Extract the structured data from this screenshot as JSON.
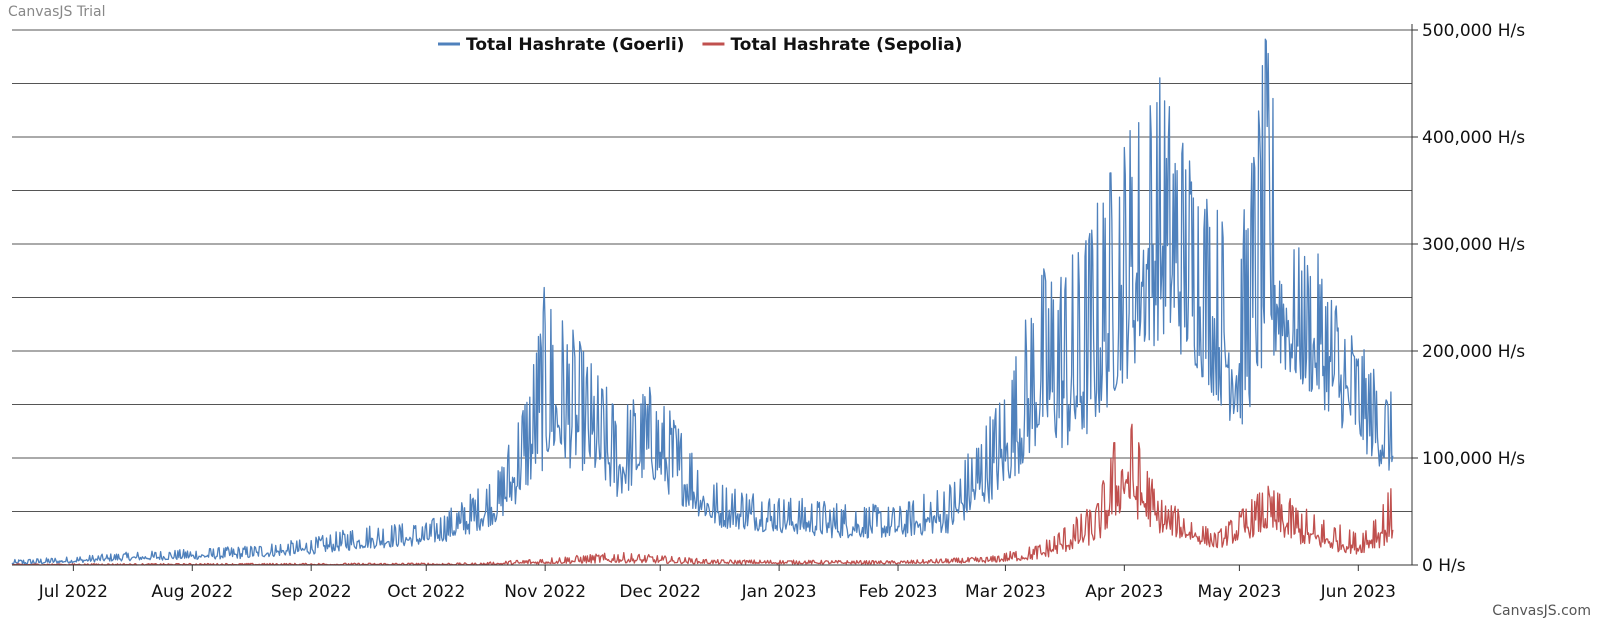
{
  "watermark": "CanvasJS Trial",
  "credit": "CanvasJS.com",
  "chart_data": {
    "type": "line",
    "title": "",
    "xlabel": "",
    "ylabel": "",
    "x_range": [
      "2022-06-15",
      "2023-06-15"
    ],
    "ylim": [
      0,
      500000
    ],
    "y_ticks": [
      {
        "value": 0,
        "label": "0 H/s"
      },
      {
        "value": 100000,
        "label": "100,000 H/s"
      },
      {
        "value": 200000,
        "label": "200,000 H/s"
      },
      {
        "value": 300000,
        "label": "300,000 H/s"
      },
      {
        "value": 400000,
        "label": "400,000 H/s"
      },
      {
        "value": 500000,
        "label": "500,000 H/s"
      }
    ],
    "x_ticks": [
      {
        "date": "2022-07-01",
        "label": "Jul 2022"
      },
      {
        "date": "2022-08-01",
        "label": "Aug 2022"
      },
      {
        "date": "2022-09-01",
        "label": "Sep 2022"
      },
      {
        "date": "2022-10-01",
        "label": "Oct 2022"
      },
      {
        "date": "2022-11-01",
        "label": "Nov 2022"
      },
      {
        "date": "2022-12-01",
        "label": "Dec 2022"
      },
      {
        "date": "2023-01-01",
        "label": "Jan 2023"
      },
      {
        "date": "2023-02-01",
        "label": "Feb 2023"
      },
      {
        "date": "2023-03-01",
        "label": "Mar 2023"
      },
      {
        "date": "2023-04-01",
        "label": "Apr 2023"
      },
      {
        "date": "2023-05-01",
        "label": "May 2023"
      },
      {
        "date": "2023-06-01",
        "label": "Jun 2023"
      }
    ],
    "gridlines": [
      50000,
      100000,
      150000,
      200000,
      250000,
      300000,
      350000,
      400000,
      450000,
      500000
    ],
    "legend_position": "top-center",
    "series": [
      {
        "name": "Total Hashrate (Goerli)",
        "color": "#4f81bc",
        "points": [
          {
            "date": "2022-06-15",
            "low": 0,
            "high": 5000
          },
          {
            "date": "2022-07-01",
            "low": 2000,
            "high": 8000
          },
          {
            "date": "2022-07-15",
            "low": 4000,
            "high": 12000
          },
          {
            "date": "2022-08-01",
            "low": 5000,
            "high": 15000
          },
          {
            "date": "2022-08-15",
            "low": 6000,
            "high": 18000
          },
          {
            "date": "2022-09-01",
            "low": 10000,
            "high": 25000
          },
          {
            "date": "2022-09-15",
            "low": 15000,
            "high": 38000
          },
          {
            "date": "2022-10-01",
            "low": 18000,
            "high": 40000
          },
          {
            "date": "2022-10-10",
            "low": 25000,
            "high": 60000
          },
          {
            "date": "2022-10-20",
            "low": 40000,
            "high": 90000
          },
          {
            "date": "2022-10-28",
            "low": 70000,
            "high": 180000
          },
          {
            "date": "2022-11-01",
            "low": 90000,
            "high": 265000
          },
          {
            "date": "2022-11-10",
            "low": 90000,
            "high": 210000
          },
          {
            "date": "2022-11-20",
            "low": 60000,
            "high": 150000
          },
          {
            "date": "2022-11-28",
            "low": 80000,
            "high": 170000
          },
          {
            "date": "2022-12-05",
            "low": 60000,
            "high": 140000
          },
          {
            "date": "2022-12-15",
            "low": 35000,
            "high": 80000
          },
          {
            "date": "2023-01-01",
            "low": 30000,
            "high": 65000
          },
          {
            "date": "2023-01-15",
            "low": 25000,
            "high": 60000
          },
          {
            "date": "2023-02-01",
            "low": 25000,
            "high": 55000
          },
          {
            "date": "2023-02-15",
            "low": 30000,
            "high": 80000
          },
          {
            "date": "2023-03-01",
            "low": 70000,
            "high": 170000
          },
          {
            "date": "2023-03-10",
            "low": 110000,
            "high": 280000
          },
          {
            "date": "2023-03-20",
            "low": 100000,
            "high": 300000
          },
          {
            "date": "2023-04-01",
            "low": 170000,
            "high": 410000
          },
          {
            "date": "2023-04-10",
            "low": 210000,
            "high": 465000
          },
          {
            "date": "2023-04-20",
            "low": 180000,
            "high": 380000
          },
          {
            "date": "2023-05-01",
            "low": 120000,
            "high": 300000
          },
          {
            "date": "2023-05-08",
            "low": 180000,
            "high": 500000
          },
          {
            "date": "2023-05-15",
            "low": 170000,
            "high": 300000
          },
          {
            "date": "2023-05-22",
            "low": 150000,
            "high": 290000
          },
          {
            "date": "2023-06-01",
            "low": 110000,
            "high": 210000
          },
          {
            "date": "2023-06-10",
            "low": 80000,
            "high": 160000
          }
        ]
      },
      {
        "name": "Total Hashrate (Sepolia)",
        "color": "#c0504e",
        "points": [
          {
            "date": "2022-06-15",
            "low": 0,
            "high": 1000
          },
          {
            "date": "2022-10-15",
            "low": 0,
            "high": 2000
          },
          {
            "date": "2022-11-20",
            "low": 2000,
            "high": 12000
          },
          {
            "date": "2022-12-15",
            "low": 1000,
            "high": 5000
          },
          {
            "date": "2023-02-01",
            "low": 1000,
            "high": 4000
          },
          {
            "date": "2023-02-25",
            "low": 2000,
            "high": 8000
          },
          {
            "date": "2023-03-10",
            "low": 5000,
            "high": 20000
          },
          {
            "date": "2023-03-25",
            "low": 20000,
            "high": 60000
          },
          {
            "date": "2023-04-01",
            "low": 50000,
            "high": 155000
          },
          {
            "date": "2023-04-10",
            "low": 30000,
            "high": 65000
          },
          {
            "date": "2023-04-25",
            "low": 15000,
            "high": 30000
          },
          {
            "date": "2023-05-08",
            "low": 30000,
            "high": 75000
          },
          {
            "date": "2023-05-20",
            "low": 15000,
            "high": 50000
          },
          {
            "date": "2023-06-01",
            "low": 10000,
            "high": 30000
          },
          {
            "date": "2023-06-10",
            "low": 20000,
            "high": 75000
          }
        ]
      }
    ]
  }
}
